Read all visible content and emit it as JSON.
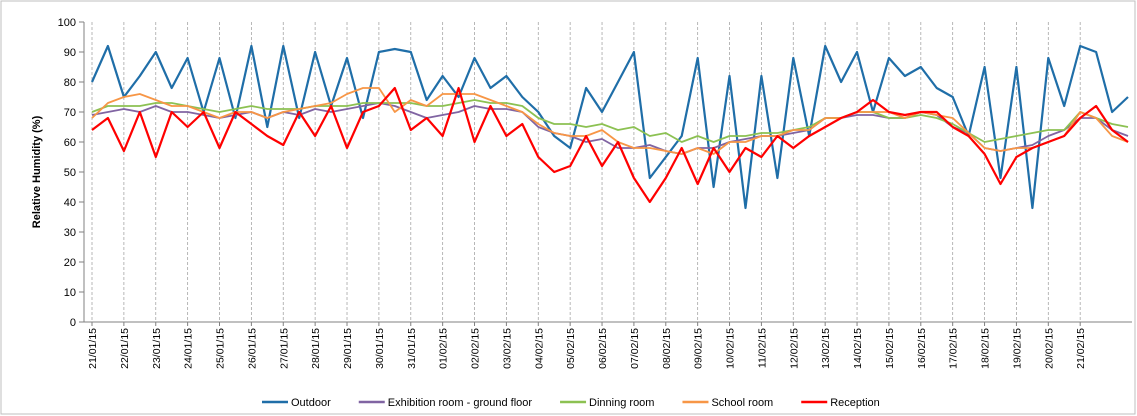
{
  "chart_data": {
    "type": "line",
    "y_label": "Relative Humidity (%)",
    "categories": [
      "21/01/15",
      null,
      "22/01/15",
      null,
      "23/01/15",
      null,
      "24/01/15",
      null,
      "25/01/15",
      null,
      "26/01/15",
      null,
      "27/01/15",
      null,
      "28/01/15",
      null,
      "29/01/15",
      null,
      "30/01/15",
      null,
      "31/01/15",
      null,
      "01/02/15",
      null,
      "02/02/15",
      null,
      "03/02/15",
      null,
      "04/02/15",
      null,
      "05/02/15",
      null,
      "06/02/15",
      null,
      "07/02/15",
      null,
      "08/02/15",
      null,
      "09/02/15",
      null,
      "10/02/15",
      null,
      "11/02/15",
      null,
      "12/02/15",
      null,
      "13/02/15",
      null,
      "14/02/15",
      null,
      "15/02/15",
      null,
      "16/02/15",
      null,
      "17/02/15",
      null,
      "18/02/15",
      null,
      "19/02/15",
      null,
      "20/02/15",
      null,
      "21/02/15",
      null,
      null,
      null
    ],
    "series": [
      {
        "name": "Outdoor",
        "color": "#1f6ea8",
        "values": [
          80,
          92,
          75,
          82,
          90,
          78,
          88,
          70,
          88,
          68,
          92,
          65,
          92,
          68,
          90,
          72,
          88,
          68,
          90,
          91,
          90,
          74,
          82,
          75,
          88,
          78,
          82,
          75,
          70,
          62,
          58,
          78,
          70,
          80,
          90,
          48,
          55,
          62,
          88,
          45,
          82,
          38,
          82,
          48,
          88,
          62,
          92,
          80,
          90,
          70,
          88,
          82,
          85,
          78,
          75,
          62,
          85,
          48,
          85,
          38,
          88,
          72,
          92,
          90,
          70,
          75
        ]
      },
      {
        "name": "Exhibition room - ground floor",
        "color": "#8064a2",
        "values": [
          69,
          70,
          71,
          70,
          72,
          70,
          70,
          69,
          68,
          69,
          70,
          68,
          70,
          69,
          71,
          70,
          71,
          72,
          73,
          72,
          70,
          68,
          69,
          70,
          72,
          71,
          71,
          70,
          65,
          63,
          62,
          60,
          61,
          58,
          58,
          59,
          57,
          56,
          58,
          58,
          60,
          61,
          62,
          62,
          63,
          64,
          68,
          68,
          69,
          69,
          68,
          68,
          70,
          69,
          65,
          63,
          58,
          57,
          58,
          59,
          62,
          64,
          68,
          68,
          64,
          62
        ]
      },
      {
        "name": "Dinning room",
        "color": "#8cc152",
        "values": [
          70,
          72,
          72,
          72,
          73,
          73,
          72,
          71,
          70,
          71,
          72,
          71,
          71,
          71,
          72,
          72,
          72,
          73,
          73,
          73,
          73,
          72,
          72,
          73,
          74,
          73,
          73,
          72,
          68,
          66,
          66,
          65,
          66,
          64,
          65,
          62,
          63,
          60,
          62,
          60,
          62,
          62,
          63,
          63,
          64,
          65,
          68,
          68,
          70,
          70,
          68,
          68,
          69,
          68,
          66,
          63,
          60,
          61,
          62,
          63,
          64,
          64,
          70,
          68,
          66,
          65
        ]
      },
      {
        "name": "School room",
        "color": "#f79646",
        "values": [
          68,
          73,
          75,
          76,
          74,
          72,
          72,
          70,
          68,
          70,
          70,
          68,
          70,
          71,
          72,
          73,
          76,
          78,
          78,
          70,
          74,
          72,
          76,
          76,
          76,
          74,
          72,
          70,
          66,
          63,
          62,
          62,
          64,
          60,
          58,
          58,
          57,
          56,
          58,
          56,
          60,
          60,
          62,
          62,
          64,
          64,
          68,
          68,
          70,
          70,
          70,
          68,
          70,
          69,
          68,
          63,
          58,
          57,
          58,
          58,
          60,
          62,
          70,
          68,
          62,
          60
        ]
      },
      {
        "name": "Reception",
        "color": "#ff0000",
        "values": [
          64,
          68,
          57,
          70,
          55,
          70,
          65,
          70,
          58,
          70,
          66,
          62,
          59,
          70,
          62,
          72,
          58,
          70,
          72,
          78,
          64,
          68,
          62,
          78,
          60,
          72,
          62,
          66,
          55,
          50,
          52,
          62,
          52,
          60,
          48,
          40,
          48,
          58,
          46,
          58,
          50,
          58,
          55,
          62,
          58,
          62,
          65,
          68,
          70,
          74,
          70,
          69,
          70,
          70,
          65,
          62,
          56,
          46,
          55,
          58,
          60,
          62,
          68,
          72,
          64,
          60
        ]
      }
    ],
    "ylim": [
      0,
      100
    ],
    "yticks": [
      0,
      10,
      20,
      30,
      40,
      50,
      60,
      70,
      80,
      90,
      100
    ],
    "xgrid": true,
    "legend": "bottom"
  }
}
